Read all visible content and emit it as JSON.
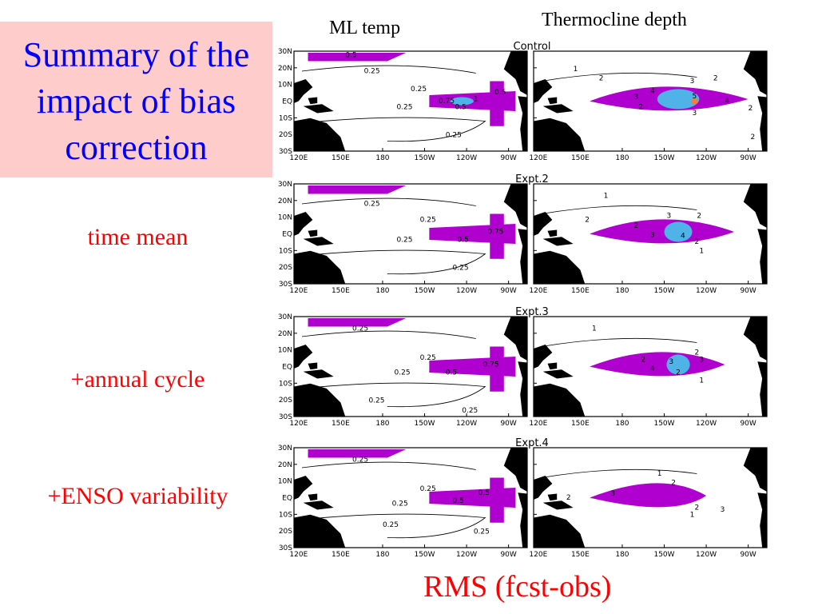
{
  "slide": {
    "title": "Summary of the impact of bias correction",
    "column_heads": [
      "ML temp",
      "Thermocline depth"
    ],
    "row_labels": [
      "time mean",
      "+annual cycle",
      "+ENSO variability"
    ],
    "footer": "RMS (fcst-obs)"
  },
  "colors": {
    "title": "#0000ff",
    "labels": "#ff0000",
    "title_box": "#ffcccc",
    "land": "#000000",
    "purple": "#b000d0",
    "light_blue": "#4fb3e8",
    "orange": "#f08040"
  },
  "maps": {
    "panel_titles": [
      "Control",
      "Expt.2",
      "Expt.3",
      "Expt.4"
    ],
    "lat_ticks": [
      "30N",
      "20N",
      "10N",
      "EQ",
      "10S",
      "20S",
      "30S"
    ],
    "lon_ticks": [
      "120E",
      "150E",
      "180",
      "150W",
      "120W",
      "90W"
    ],
    "ml_temp_contours": [
      [
        "0.5",
        "0.25",
        "0.25",
        "0.75",
        "1",
        "0.5",
        "0.5",
        "0.25",
        "0.25"
      ],
      [
        "0.25",
        "0.25",
        "0.5",
        "0.75",
        "0.25",
        "0.25"
      ],
      [
        "0.25",
        "0.25",
        "0.5",
        "0.75",
        "0.25",
        "0.25",
        "0.25"
      ],
      [
        "0.25",
        "0.25",
        "0.5",
        "0.5",
        "0.25",
        "0.25",
        "0.25"
      ]
    ],
    "thermocline_contours": [
      [
        "1",
        "2",
        "3",
        "2",
        "4",
        "3",
        "5",
        "4",
        "2",
        "3",
        "2",
        "2"
      ],
      [
        "1",
        "2",
        "3",
        "2",
        "2",
        "3",
        "4",
        "2",
        "1"
      ],
      [
        "1",
        "2",
        "3",
        "2",
        "3",
        "4",
        "2",
        "1"
      ],
      [
        "1",
        "2",
        "3",
        "2",
        "2",
        "3",
        "1"
      ]
    ]
  }
}
